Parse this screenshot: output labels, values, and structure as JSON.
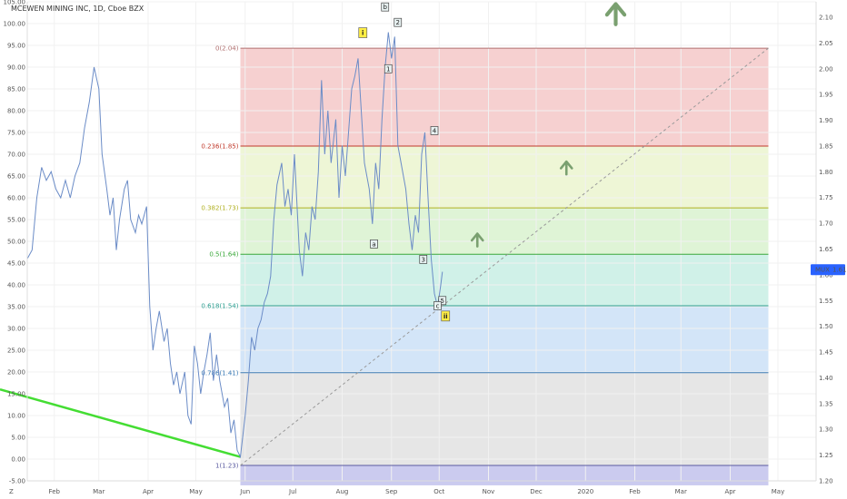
{
  "chart_data": {
    "type": "line",
    "title": "MCEWEN MINING INC, 1D, Cboe BZX",
    "left_axis": {
      "range": [
        -5,
        105
      ],
      "ticks": [
        105,
        100,
        95,
        90,
        85,
        80,
        75,
        70,
        65,
        60,
        55,
        50,
        45,
        40,
        35,
        30,
        25,
        20,
        15,
        10,
        5,
        0,
        -5
      ],
      "tick_labels": [
        "105.00",
        "100.00",
        "95.00",
        "90.00",
        "85.00",
        "80.00",
        "75.00",
        "70.00",
        "65.00",
        "60.00",
        "55.00",
        "50.00",
        "45.00",
        "40.00",
        "35.00",
        "30.00",
        "25.00",
        "20.00",
        "15.00",
        "10.00",
        "5.00",
        "0.00",
        "-5.00"
      ]
    },
    "right_axis": {
      "range": [
        1.2,
        2.13
      ],
      "ticks": [
        2.1,
        2.05,
        2.0,
        1.95,
        1.9,
        1.85,
        1.8,
        1.75,
        1.7,
        1.65,
        1.6,
        1.55,
        1.5,
        1.45,
        1.4,
        1.35,
        1.3,
        1.25,
        1.2
      ],
      "tick_labels": [
        "2.10",
        "2.05",
        "2.00",
        "1.95",
        "1.90",
        "1.85",
        "1.80",
        "1.75",
        "1.70",
        "1.65",
        "1.60",
        "1.55",
        "1.50",
        "1.45",
        "1.40",
        "1.35",
        "1.30",
        "1.25",
        "1.20"
      ]
    },
    "x_axis": {
      "start": "2019-01-15",
      "end": "2020-05-25",
      "ticks": [
        {
          "date": "2019-02-01",
          "label": "Feb"
        },
        {
          "date": "2019-03-01",
          "label": "Mar"
        },
        {
          "date": "2019-04-01",
          "label": "Apr"
        },
        {
          "date": "2019-05-01",
          "label": "May"
        },
        {
          "date": "2019-06-01",
          "label": "Jun"
        },
        {
          "date": "2019-07-01",
          "label": "Jul"
        },
        {
          "date": "2019-08-01",
          "label": "Aug"
        },
        {
          "date": "2019-09-01",
          "label": "Sep"
        },
        {
          "date": "2019-10-01",
          "label": "Oct"
        },
        {
          "date": "2019-11-01",
          "label": "Nov"
        },
        {
          "date": "2019-12-01",
          "label": "Dec"
        },
        {
          "date": "2020-01-01",
          "label": "2020"
        },
        {
          "date": "2020-02-01",
          "label": "Feb"
        },
        {
          "date": "2020-03-01",
          "label": "Mar"
        },
        {
          "date": "2020-04-01",
          "label": "Apr"
        },
        {
          "date": "2020-05-01",
          "label": "May"
        }
      ]
    },
    "series": [
      {
        "color": "#6b8cc7",
        "points": [
          [
            "2019-01-15",
            46
          ],
          [
            "2019-01-18",
            48
          ],
          [
            "2019-01-21",
            60
          ],
          [
            "2019-01-24",
            67
          ],
          [
            "2019-01-27",
            64
          ],
          [
            "2019-01-30",
            66
          ],
          [
            "2019-02-02",
            62
          ],
          [
            "2019-02-05",
            60
          ],
          [
            "2019-02-08",
            64
          ],
          [
            "2019-02-11",
            60
          ],
          [
            "2019-02-14",
            65
          ],
          [
            "2019-02-17",
            68
          ],
          [
            "2019-02-20",
            76
          ],
          [
            "2019-02-23",
            82
          ],
          [
            "2019-02-26",
            90
          ],
          [
            "2019-03-01",
            85
          ],
          [
            "2019-03-03",
            70
          ],
          [
            "2019-03-06",
            62
          ],
          [
            "2019-03-08",
            56
          ],
          [
            "2019-03-10",
            60
          ],
          [
            "2019-03-12",
            48
          ],
          [
            "2019-03-14",
            55
          ],
          [
            "2019-03-17",
            62
          ],
          [
            "2019-03-19",
            64
          ],
          [
            "2019-03-21",
            55
          ],
          [
            "2019-03-24",
            52
          ],
          [
            "2019-03-26",
            56
          ],
          [
            "2019-03-28",
            54
          ],
          [
            "2019-03-31",
            58
          ],
          [
            "2019-04-02",
            35
          ],
          [
            "2019-04-04",
            25
          ],
          [
            "2019-04-06",
            30
          ],
          [
            "2019-04-08",
            34
          ],
          [
            "2019-04-11",
            27
          ],
          [
            "2019-04-13",
            30
          ],
          [
            "2019-04-15",
            22
          ],
          [
            "2019-04-17",
            17
          ],
          [
            "2019-04-19",
            20
          ],
          [
            "2019-04-21",
            15
          ],
          [
            "2019-04-24",
            20
          ],
          [
            "2019-04-26",
            10
          ],
          [
            "2019-04-28",
            8
          ],
          [
            "2019-04-30",
            26
          ],
          [
            "2019-05-02",
            22
          ],
          [
            "2019-05-04",
            15
          ],
          [
            "2019-05-06",
            20
          ],
          [
            "2019-05-08",
            24
          ],
          [
            "2019-05-10",
            29
          ],
          [
            "2019-05-12",
            18
          ],
          [
            "2019-05-14",
            24
          ],
          [
            "2019-05-16",
            18
          ],
          [
            "2019-05-19",
            12
          ],
          [
            "2019-05-21",
            14
          ],
          [
            "2019-05-23",
            6
          ],
          [
            "2019-05-25",
            9
          ],
          [
            "2019-05-27",
            2
          ],
          [
            "2019-05-29",
            0.5
          ],
          [
            "2019-06-01",
            10
          ],
          [
            "2019-06-03",
            18
          ],
          [
            "2019-06-05",
            28
          ],
          [
            "2019-06-07",
            25
          ],
          [
            "2019-06-09",
            30
          ],
          [
            "2019-06-11",
            32
          ],
          [
            "2019-06-13",
            36
          ],
          [
            "2019-06-15",
            38
          ],
          [
            "2019-06-17",
            42
          ],
          [
            "2019-06-19",
            55
          ],
          [
            "2019-06-21",
            63
          ],
          [
            "2019-06-24",
            68
          ],
          [
            "2019-06-26",
            58
          ],
          [
            "2019-06-28",
            62
          ],
          [
            "2019-06-30",
            56
          ],
          [
            "2019-07-02",
            70
          ],
          [
            "2019-07-05",
            48
          ],
          [
            "2019-07-07",
            42
          ],
          [
            "2019-07-09",
            52
          ],
          [
            "2019-07-11",
            48
          ],
          [
            "2019-07-13",
            58
          ],
          [
            "2019-07-15",
            55
          ],
          [
            "2019-07-17",
            66
          ],
          [
            "2019-07-19",
            87
          ],
          [
            "2019-07-21",
            70
          ],
          [
            "2019-07-23",
            80
          ],
          [
            "2019-07-25",
            68
          ],
          [
            "2019-07-28",
            78
          ],
          [
            "2019-07-30",
            60
          ],
          [
            "2019-08-01",
            72
          ],
          [
            "2019-08-03",
            65
          ],
          [
            "2019-08-05",
            75
          ],
          [
            "2019-08-07",
            85
          ],
          [
            "2019-08-09",
            88
          ],
          [
            "2019-08-11",
            92
          ],
          [
            "2019-08-13",
            80
          ],
          [
            "2019-08-15",
            68
          ],
          [
            "2019-08-18",
            62
          ],
          [
            "2019-08-20",
            54
          ],
          [
            "2019-08-22",
            68
          ],
          [
            "2019-08-24",
            62
          ],
          [
            "2019-08-26",
            78
          ],
          [
            "2019-08-28",
            90
          ],
          [
            "2019-08-30",
            98
          ],
          [
            "2019-09-01",
            92
          ],
          [
            "2019-09-03",
            97
          ],
          [
            "2019-09-05",
            72
          ],
          [
            "2019-09-07",
            68
          ],
          [
            "2019-09-10",
            62
          ],
          [
            "2019-09-12",
            54
          ],
          [
            "2019-09-14",
            48
          ],
          [
            "2019-09-16",
            56
          ],
          [
            "2019-09-18",
            52
          ],
          [
            "2019-09-20",
            70
          ],
          [
            "2019-09-22",
            75
          ],
          [
            "2019-09-24",
            60
          ],
          [
            "2019-09-26",
            46
          ],
          [
            "2019-09-28",
            38
          ],
          [
            "2019-09-30",
            35
          ],
          [
            "2019-10-02",
            40
          ],
          [
            "2019-10-03",
            43
          ]
        ]
      }
    ],
    "fib_levels": [
      {
        "label": "0(2.04)",
        "price": 2.04,
        "color": "#b07070",
        "band": "rgba(230,120,120,0.35)"
      },
      {
        "label": "0.236(1.85)",
        "price": 1.85,
        "color": "#c0392b",
        "band": "rgba(200,225,120,0.30)"
      },
      {
        "label": "0.382(1.73)",
        "price": 1.73,
        "color": "#b0b020",
        "band": "rgba(150,220,120,0.30)"
      },
      {
        "label": "0.5(1.64)",
        "price": 1.64,
        "color": "#3aa83a",
        "band": "rgba(120,215,190,0.35)"
      },
      {
        "label": "0.618(1.54)",
        "price": 1.54,
        "color": "#2a9d8f",
        "band": "rgba(130,180,235,0.35)"
      },
      {
        "label": "0.786(1.41)",
        "price": 1.41,
        "color": "#3a7ab5",
        "band": "rgba(200,200,200,0.45)"
      },
      {
        "label": "1(1.23)",
        "price": 1.23,
        "color": "#5a5aa0",
        "band": "rgba(140,140,220,0.45)"
      }
    ],
    "fib_range": {
      "start": "2019-05-29",
      "end": "2020-04-25"
    },
    "diagonal_line": {
      "from": [
        "2019-05-29",
        1.23
      ],
      "to": [
        "2020-04-25",
        2.04
      ]
    },
    "trend_line": {
      "from": [
        "2019-01-15",
        16
      ],
      "to": [
        "2019-05-29",
        0.5
      ],
      "color": "#44dd33"
    },
    "wave_labels": [
      {
        "text": "i",
        "date": "2019-08-14",
        "price": 2.07,
        "style": "major"
      },
      {
        "text": "b",
        "date": "2019-08-28",
        "price": 2.12,
        "style": "minor"
      },
      {
        "text": "2",
        "date": "2019-09-05",
        "price": 2.09,
        "style": "minor"
      },
      {
        "text": "1",
        "date": "2019-08-30",
        "price": 2.0,
        "style": "minor"
      },
      {
        "text": "4",
        "date": "2019-09-28",
        "price": 1.88,
        "style": "minor"
      },
      {
        "text": "a",
        "date": "2019-08-21",
        "price": 1.66,
        "style": "minor"
      },
      {
        "text": "3",
        "date": "2019-09-21",
        "price": 1.63,
        "style": "minor"
      },
      {
        "text": "5",
        "date": "2019-10-03",
        "price": 1.55,
        "style": "minor"
      },
      {
        "text": "c",
        "date": "2019-09-30",
        "price": 1.54,
        "style": "minor"
      },
      {
        "text": "ii",
        "date": "2019-10-05",
        "price": 1.52,
        "style": "major"
      }
    ],
    "arrows": [
      {
        "date": "2020-01-20",
        "price": 2.11,
        "size": "large",
        "color": "#7aa070"
      },
      {
        "date": "2019-12-20",
        "price": 1.81,
        "size": "small",
        "color": "#7aa070"
      },
      {
        "date": "2019-10-25",
        "price": 1.67,
        "size": "small",
        "color": "#7aa070"
      }
    ],
    "current_price": {
      "symbol": "MUX",
      "value": "1.61",
      "price": 1.61,
      "color": "#2962ff"
    },
    "corner_label": "Z"
  }
}
